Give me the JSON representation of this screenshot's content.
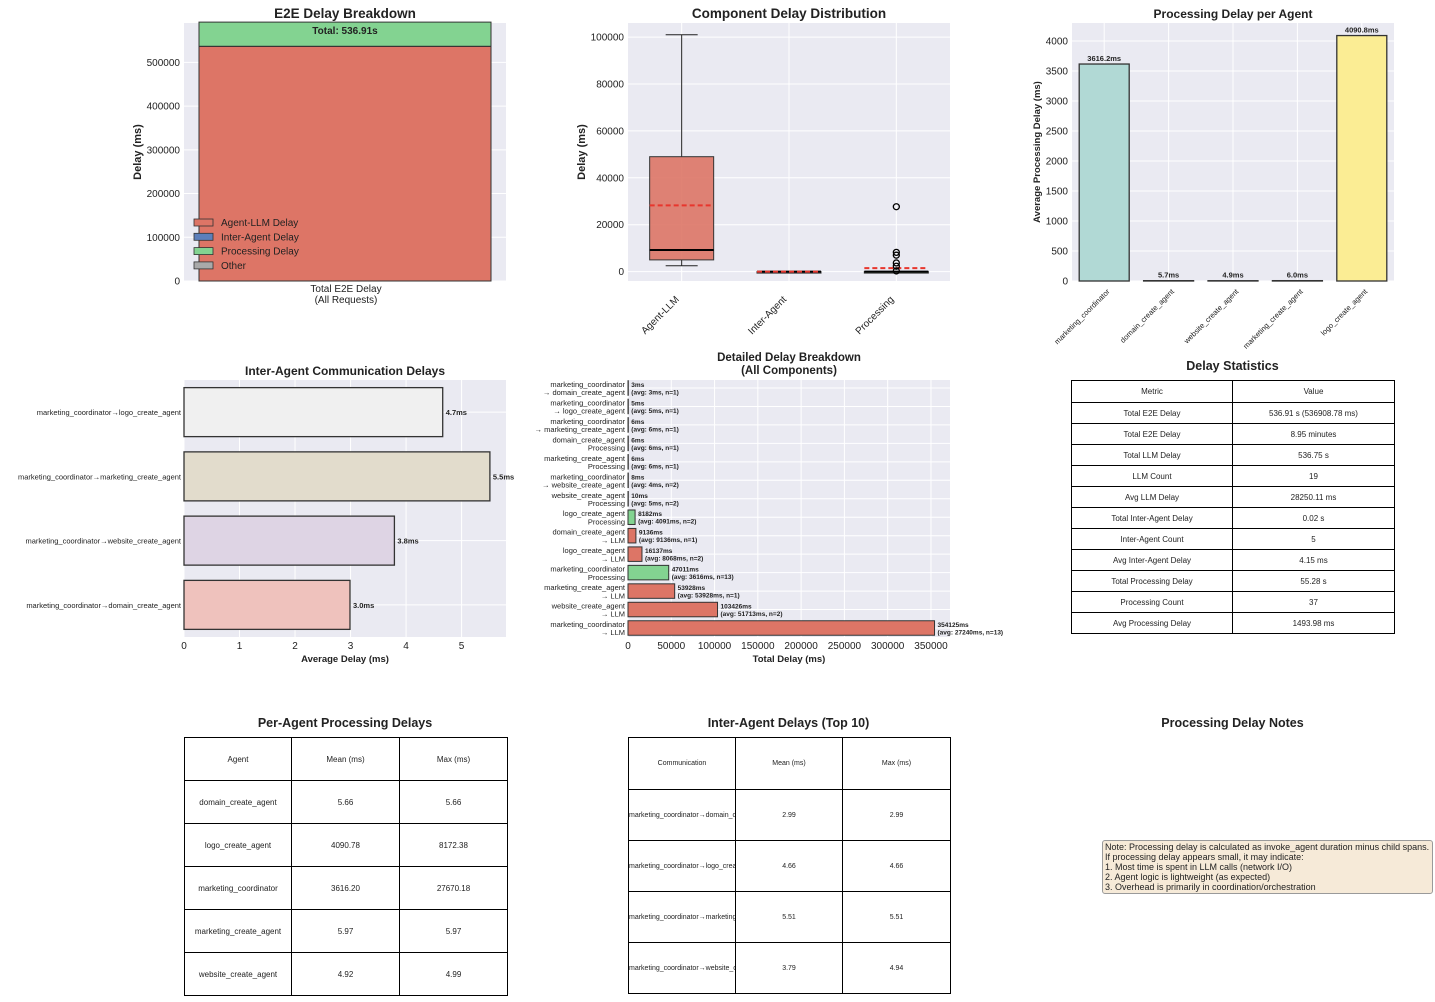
{
  "chart_data": [
    {
      "id": "e2e",
      "type": "bar",
      "title": "E2E Delay Breakdown",
      "ylabel": "Delay (ms)",
      "xlabel": "",
      "categories": [
        "Total E2E Delay\n(All Requests)"
      ],
      "series": [
        {
          "name": "Agent-LLM Delay",
          "values": [
            536750
          ],
          "color": "#dd7566"
        },
        {
          "name": "Inter-Agent Delay",
          "values": [
            20
          ],
          "color": "#5c7fbb"
        },
        {
          "name": "Processing Delay",
          "values": [
            55280
          ],
          "color": "#83d391"
        },
        {
          "name": "Other",
          "values": [
            0
          ],
          "color": "#a9a9a9"
        }
      ],
      "annotation": "Total: 536.91s",
      "ylim": [
        0,
        590000
      ],
      "yticks": [
        0,
        100000,
        200000,
        300000,
        400000,
        500000
      ],
      "legend": "lower-left",
      "grid": true
    },
    {
      "id": "box",
      "type": "box",
      "title": "Component Delay Distribution",
      "ylabel": "Delay (ms)",
      "categories": [
        "Agent-LLM",
        "Inter-Agent",
        "Processing"
      ],
      "boxes": [
        {
          "min": 2500,
          "q1": 5000,
          "median": 9200,
          "q3": 49000,
          "max": 101000,
          "mean": 28250,
          "outliers": [],
          "color": "#dd7566"
        },
        {
          "min": 3,
          "q1": 3,
          "median": 4.5,
          "q3": 5.5,
          "max": 6,
          "mean": 4.15,
          "outliers": [],
          "color": "#5c7fbb"
        },
        {
          "min": 3,
          "q1": 5,
          "median": 6,
          "q3": 9,
          "max": 12,
          "mean": 1494,
          "outliers": [
            300,
            2300,
            3700,
            7000,
            8200,
            27670
          ],
          "color": "#83d391"
        }
      ],
      "ylim": [
        -4000,
        106000
      ],
      "yticks": [
        0,
        20000,
        40000,
        60000,
        80000,
        100000
      ],
      "grid": true
    },
    {
      "id": "proc",
      "type": "bar",
      "title": "Processing Delay per Agent",
      "ylabel": "Average Processing Delay (ms)",
      "categories": [
        "marketing_coordinator",
        "domain_create_agent",
        "website_create_agent",
        "marketing_create_agent",
        "logo_create_agent"
      ],
      "values": [
        3616.2,
        5.7,
        4.9,
        6.0,
        4090.8
      ],
      "labels": [
        "3616.2ms",
        "5.7ms",
        "4.9ms",
        "6.0ms",
        "4090.8ms"
      ],
      "colors": [
        "#b1d9d5",
        "#cae6e0",
        "#e2eedd",
        "#f4f1bf",
        "#fbed94"
      ],
      "ylim": [
        0,
        4300
      ],
      "yticks": [
        0,
        500,
        1000,
        1500,
        2000,
        2500,
        3000,
        3500,
        4000
      ],
      "grid": true
    },
    {
      "id": "inter",
      "type": "bar",
      "orientation": "horizontal",
      "title": "Inter-Agent Communication Delays",
      "xlabel": "Average Delay (ms)",
      "categories": [
        "marketing_coordinator→logo_create_agent",
        "marketing_coordinator→marketing_create_agent",
        "marketing_coordinator→website_create_agent",
        "marketing_coordinator→domain_create_agent"
      ],
      "values": [
        4.66,
        5.51,
        3.79,
        2.99
      ],
      "labels": [
        "4.7ms",
        "5.5ms",
        "3.8ms",
        "3.0ms"
      ],
      "colors": [
        "#f0f0f0",
        "#e2dccc",
        "#ded4e4",
        "#efc2bd"
      ],
      "xlim": [
        0,
        5.8
      ],
      "xticks": [
        0,
        1,
        2,
        3,
        4,
        5
      ],
      "grid": true
    },
    {
      "id": "detail",
      "type": "bar",
      "orientation": "horizontal",
      "title": "Detailed Delay Breakdown\n(All Components)",
      "xlabel": "Total Delay (ms)",
      "categories": [
        "marketing_coordinator\n→ domain_create_agent",
        "marketing_coordinator\n→ logo_create_agent",
        "marketing_coordinator\n→ marketing_create_agent",
        "domain_create_agent\nProcessing",
        "marketing_create_agent\nProcessing",
        "marketing_coordinator\n→ website_create_agent",
        "website_create_agent\nProcessing",
        "logo_create_agent\nProcessing",
        "domain_create_agent\n→ LLM",
        "logo_create_agent\n→ LLM",
        "marketing_coordinator\nProcessing",
        "marketing_create_agent\n→ LLM",
        "website_create_agent\n→ LLM",
        "marketing_coordinator\n→ LLM"
      ],
      "values": [
        3,
        5,
        6,
        6,
        6,
        8,
        10,
        8182,
        9136,
        16137,
        47011,
        53928,
        103426,
        354125
      ],
      "labels": [
        "3ms\n(avg: 3ms, n=1)",
        "5ms\n(avg: 5ms, n=1)",
        "6ms\n(avg: 6ms, n=1)",
        "6ms\n(avg: 6ms, n=1)",
        "6ms\n(avg: 6ms, n=1)",
        "8ms\n(avg: 4ms, n=2)",
        "10ms\n(avg: 5ms, n=2)",
        "8182ms\n(avg: 4091ms, n=2)",
        "9136ms\n(avg: 9136ms, n=1)",
        "16137ms\n(avg: 8068ms, n=2)",
        "47011ms\n(avg: 3616ms, n=13)",
        "53928ms\n(avg: 53928ms, n=1)",
        "103426ms\n(avg: 51713ms, n=2)",
        "354125ms\n(avg: 27240ms, n=13)"
      ],
      "kinds": [
        "inter",
        "inter",
        "inter",
        "proc",
        "proc",
        "inter",
        "proc",
        "proc",
        "llm",
        "llm",
        "proc",
        "llm",
        "llm",
        "llm"
      ],
      "colors": {
        "llm": "#dd7566",
        "proc": "#83d391",
        "inter": "#5c7fbb"
      },
      "xlim": [
        0,
        372000
      ],
      "xticks": [
        0,
        50000,
        100000,
        150000,
        200000,
        250000,
        300000,
        350000
      ],
      "grid": true
    }
  ],
  "tables": {
    "delay_stats": {
      "title": "Delay Statistics",
      "headers": [
        "Metric",
        "Value"
      ],
      "rows": [
        [
          "Total E2E Delay",
          "536.91 s (536908.78 ms)"
        ],
        [
          "Total E2E Delay",
          "8.95 minutes"
        ],
        [
          "Total LLM Delay",
          "536.75 s"
        ],
        [
          "LLM Count",
          "19"
        ],
        [
          "Avg LLM Delay",
          "28250.11 ms"
        ],
        [
          "Total Inter-Agent Delay",
          "0.02 s"
        ],
        [
          "Inter-Agent Count",
          "5"
        ],
        [
          "Avg Inter-Agent Delay",
          "4.15 ms"
        ],
        [
          "Total Processing Delay",
          "55.28 s"
        ],
        [
          "Processing Count",
          "37"
        ],
        [
          "Avg Processing Delay",
          "1493.98 ms"
        ]
      ]
    },
    "per_agent": {
      "title": "Per-Agent Processing Delays",
      "headers": [
        "Agent",
        "Mean (ms)",
        "Max (ms)"
      ],
      "rows": [
        [
          "domain_create_agent",
          "5.66",
          "5.66"
        ],
        [
          "logo_create_agent",
          "4090.78",
          "8172.38"
        ],
        [
          "marketing_coordinator",
          "3616.20",
          "27670.18"
        ],
        [
          "marketing_create_agent",
          "5.97",
          "5.97"
        ],
        [
          "website_create_agent",
          "4.92",
          "4.99"
        ]
      ]
    },
    "inter_top": {
      "title": "Inter-Agent Delays (Top 10)",
      "headers": [
        "Communication",
        "Mean (ms)",
        "Max (ms)"
      ],
      "rows": [
        [
          "marketing_coordinator→domain_create_agent",
          "2.99",
          "2.99"
        ],
        [
          "marketing_coordinator→logo_create_agent",
          "4.66",
          "4.66"
        ],
        [
          "marketing_coordinator→marketing_create_agent",
          "5.51",
          "5.51"
        ],
        [
          "marketing_coordinator→website_create_agent",
          "3.79",
          "4.94"
        ]
      ]
    }
  },
  "notes": {
    "title": "Processing Delay Notes",
    "lines": [
      "Note: Processing delay is calculated as invoke_agent duration minus child spans.",
      "If processing delay appears small, it may indicate:",
      "1. Most time is spent in LLM calls (network I/O)",
      "2. Agent logic is lightweight (as expected)",
      "3. Overhead is primarily in coordination/orchestration"
    ]
  }
}
